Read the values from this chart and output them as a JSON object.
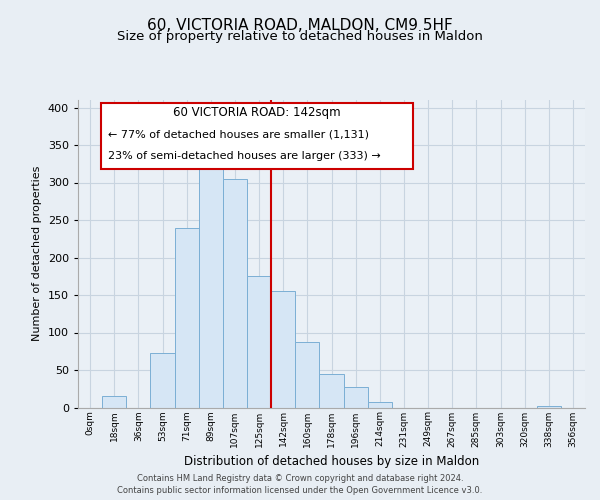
{
  "title": "60, VICTORIA ROAD, MALDON, CM9 5HF",
  "subtitle": "Size of property relative to detached houses in Maldon",
  "xlabel": "Distribution of detached houses by size in Maldon",
  "ylabel": "Number of detached properties",
  "bin_labels": [
    "0sqm",
    "18sqm",
    "36sqm",
    "53sqm",
    "71sqm",
    "89sqm",
    "107sqm",
    "125sqm",
    "142sqm",
    "160sqm",
    "178sqm",
    "196sqm",
    "214sqm",
    "231sqm",
    "249sqm",
    "267sqm",
    "285sqm",
    "303sqm",
    "320sqm",
    "338sqm",
    "356sqm"
  ],
  "bar_heights": [
    0,
    16,
    0,
    73,
    240,
    335,
    305,
    175,
    155,
    87,
    45,
    27,
    7,
    0,
    0,
    0,
    0,
    0,
    0,
    2,
    0
  ],
  "bar_color": "#d6e6f5",
  "bar_edge_color": "#7bafd4",
  "marker_line_color": "#cc0000",
  "ylim": [
    0,
    410
  ],
  "yticks": [
    0,
    50,
    100,
    150,
    200,
    250,
    300,
    350,
    400
  ],
  "annotation_title": "60 VICTORIA ROAD: 142sqm",
  "annotation_line1": "← 77% of detached houses are smaller (1,131)",
  "annotation_line2": "23% of semi-detached houses are larger (333) →",
  "annotation_box_color": "#ffffff",
  "annotation_box_edge_color": "#cc0000",
  "footer_line1": "Contains HM Land Registry data © Crown copyright and database right 2024.",
  "footer_line2": "Contains public sector information licensed under the Open Government Licence v3.0.",
  "bg_color": "#e8eef4",
  "plot_bg_color": "#eaf0f6",
  "grid_color": "#c8d4e0",
  "title_fontsize": 11,
  "subtitle_fontsize": 9.5
}
